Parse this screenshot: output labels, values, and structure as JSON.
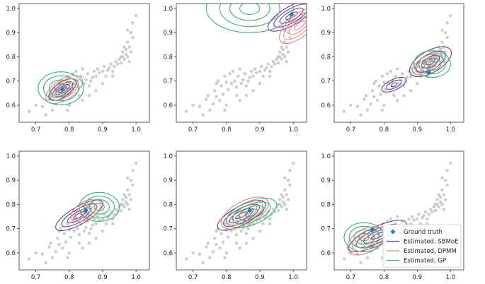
{
  "chart_data": {
    "type": "scatter",
    "layout": "2x3 grid of contour panels",
    "series_names": [
      "Ground truth",
      "Estimated, SBMoE",
      "Estimated, DPMM",
      "Estimated, GP"
    ],
    "colors": {
      "ground_truth": "#2a79b0",
      "sbmoe": "#6a3d9a",
      "dpmm": "#f08080",
      "gp": "#3cb371",
      "scatter": "#bdbdbd"
    },
    "legend": {
      "panel": 5,
      "placement": "lower-right",
      "entries": [
        {
          "label": "Ground truth",
          "kind": "diamond",
          "color_key": "ground_truth"
        },
        {
          "label": "Estimated, SBMoE",
          "kind": "line",
          "color_key": "sbmoe"
        },
        {
          "label": "Estimated, DPMM",
          "kind": "line",
          "color_key": "dpmm"
        },
        {
          "label": "Estimated, GP",
          "kind": "line",
          "color_key": "gp"
        }
      ]
    },
    "xlim": [
      0.65,
      1.04
    ],
    "ylim": [
      0.53,
      1.02
    ],
    "x_ticks": [
      "0.7",
      "0.8",
      "0.9",
      "1.0"
    ],
    "y_ticks": [
      "0.6",
      "0.7",
      "0.8",
      "0.9",
      "1.0"
    ],
    "scatter_points": [
      [
        0.68,
        0.575
      ],
      [
        0.7,
        0.6
      ],
      [
        0.72,
        0.595
      ],
      [
        0.73,
        0.56
      ],
      [
        0.74,
        0.625
      ],
      [
        0.745,
        0.64
      ],
      [
        0.75,
        0.58
      ],
      [
        0.76,
        0.605
      ],
      [
        0.765,
        0.66
      ],
      [
        0.77,
        0.635
      ],
      [
        0.775,
        0.7
      ],
      [
        0.78,
        0.62
      ],
      [
        0.785,
        0.68
      ],
      [
        0.79,
        0.645
      ],
      [
        0.795,
        0.72
      ],
      [
        0.8,
        0.6
      ],
      [
        0.8,
        0.695
      ],
      [
        0.805,
        0.665
      ],
      [
        0.81,
        0.73
      ],
      [
        0.815,
        0.69
      ],
      [
        0.82,
        0.74
      ],
      [
        0.825,
        0.7
      ],
      [
        0.83,
        0.675
      ],
      [
        0.835,
        0.72
      ],
      [
        0.84,
        0.75
      ],
      [
        0.845,
        0.69
      ],
      [
        0.85,
        0.705
      ],
      [
        0.855,
        0.73
      ],
      [
        0.86,
        0.68
      ],
      [
        0.865,
        0.7
      ],
      [
        0.87,
        0.715
      ],
      [
        0.875,
        0.74
      ],
      [
        0.88,
        0.72
      ],
      [
        0.885,
        0.75
      ],
      [
        0.89,
        0.735
      ],
      [
        0.9,
        0.74
      ],
      [
        0.905,
        0.76
      ],
      [
        0.91,
        0.72
      ],
      [
        0.915,
        0.745
      ],
      [
        0.92,
        0.755
      ],
      [
        0.925,
        0.77
      ],
      [
        0.93,
        0.74
      ],
      [
        0.935,
        0.76
      ],
      [
        0.94,
        0.78
      ],
      [
        0.945,
        0.77
      ],
      [
        0.95,
        0.79
      ],
      [
        0.955,
        0.775
      ],
      [
        0.96,
        0.8
      ],
      [
        0.96,
        0.82
      ],
      [
        0.965,
        0.79
      ],
      [
        0.97,
        0.81
      ],
      [
        0.97,
        0.83
      ],
      [
        0.975,
        0.8
      ],
      [
        0.975,
        0.86
      ],
      [
        0.98,
        0.84
      ],
      [
        0.98,
        0.78
      ],
      [
        0.985,
        0.82
      ],
      [
        0.99,
        0.88
      ],
      [
        0.99,
        0.94
      ],
      [
        1.0,
        0.97
      ],
      [
        0.795,
        0.58
      ],
      [
        0.84,
        0.62
      ],
      [
        0.86,
        0.64
      ],
      [
        0.9,
        0.69
      ],
      [
        0.93,
        0.72
      ],
      [
        0.88,
        0.66
      ],
      [
        0.83,
        0.64
      ],
      [
        0.77,
        0.69
      ],
      [
        0.955,
        0.8
      ],
      [
        0.965,
        0.84
      ],
      [
        0.985,
        0.9
      ],
      [
        0.975,
        0.91
      ]
    ],
    "panels": [
      {
        "ground_truth": [
          0.78,
          0.665
        ],
        "contours": [
          {
            "series": "sbmoe",
            "cx": 0.78,
            "cy": 0.665,
            "rx": [
              0.012,
              0.024,
              0.036,
              0.048
            ],
            "ry": [
              0.006,
              0.012,
              0.02,
              0.03
            ],
            "angle": 35
          },
          {
            "series": "dpmm",
            "cx": 0.785,
            "cy": 0.665,
            "rx": [
              0.02,
              0.034,
              0.048,
              0.062
            ],
            "ry": [
              0.012,
              0.022,
              0.032,
              0.042
            ],
            "angle": 32
          },
          {
            "series": "gp",
            "cx": 0.775,
            "cy": 0.67,
            "rx": [
              0.018,
              0.035,
              0.052,
              0.068
            ],
            "ry": [
              0.018,
              0.035,
              0.052,
              0.068
            ],
            "angle": 0
          }
        ]
      },
      {
        "ground_truth": [
          0.995,
          0.975
        ],
        "contours": [
          {
            "series": "sbmoe",
            "cx": 0.995,
            "cy": 0.97,
            "rx": [
              0.02,
              0.04,
              0.06,
              0.08
            ],
            "ry": [
              0.008,
              0.018,
              0.028,
              0.038
            ],
            "angle": 30
          },
          {
            "series": "dpmm",
            "cx": 1.02,
            "cy": 0.93,
            "rx": [
              0.02,
              0.04,
              0.06,
              0.075
            ],
            "ry": [
              0.01,
              0.02,
              0.032,
              0.045
            ],
            "angle": 40
          },
          {
            "series": "gp",
            "cx": 0.87,
            "cy": 1.0,
            "rx": [
              0.03,
              0.06,
              0.09,
              0.13
            ],
            "ry": [
              0.025,
              0.05,
              0.075,
              0.1
            ],
            "angle": 0
          }
        ]
      },
      {
        "ground_truth": [
          0.935,
          0.735
        ],
        "contours": [
          {
            "series": "sbmoe",
            "cx": 0.94,
            "cy": 0.78,
            "rx": [
              0.015,
              0.03,
              0.05,
              0.07
            ],
            "ry": [
              0.01,
              0.02,
              0.032,
              0.045
            ],
            "angle": 30
          },
          {
            "series": "sbmoe",
            "cx": 0.83,
            "cy": 0.685,
            "rx": [
              0.01,
              0.025,
              0.04
            ],
            "ry": [
              0.006,
              0.014,
              0.022
            ],
            "angle": 25
          },
          {
            "series": "dpmm",
            "cx": 0.93,
            "cy": 0.77,
            "rx": [
              0.02,
              0.035,
              0.05
            ],
            "ry": [
              0.012,
              0.022,
              0.032
            ],
            "angle": 30
          },
          {
            "series": "gp",
            "cx": 0.945,
            "cy": 0.77,
            "rx": [
              0.012,
              0.025,
              0.04,
              0.055
            ],
            "ry": [
              0.012,
              0.025,
              0.04,
              0.055
            ],
            "angle": 0
          }
        ]
      },
      {
        "ground_truth": [
          0.85,
          0.775
        ],
        "contours": [
          {
            "series": "sbmoe",
            "cx": 0.83,
            "cy": 0.755,
            "rx": [
              0.02,
              0.04,
              0.06,
              0.08
            ],
            "ry": [
              0.008,
              0.016,
              0.026,
              0.036
            ],
            "angle": 30
          },
          {
            "series": "dpmm",
            "cx": 0.85,
            "cy": 0.775,
            "rx": [
              0.02,
              0.035,
              0.05
            ],
            "ry": [
              0.012,
              0.024,
              0.036
            ],
            "angle": 30
          },
          {
            "series": "gp",
            "cx": 0.89,
            "cy": 0.79,
            "rx": [
              0.015,
              0.03,
              0.045,
              0.06
            ],
            "ry": [
              0.015,
              0.03,
              0.045,
              0.06
            ],
            "angle": 0
          }
        ]
      },
      {
        "ground_truth": [
          0.87,
          0.775
        ],
        "contours": [
          {
            "series": "sbmoe",
            "cx": 0.845,
            "cy": 0.755,
            "rx": [
              0.02,
              0.04,
              0.06,
              0.08
            ],
            "ry": [
              0.008,
              0.018,
              0.028,
              0.038
            ],
            "angle": 28
          },
          {
            "series": "dpmm",
            "cx": 0.855,
            "cy": 0.765,
            "rx": [
              0.02,
              0.04,
              0.06,
              0.078
            ],
            "ry": [
              0.012,
              0.024,
              0.036,
              0.048
            ],
            "angle": 28
          },
          {
            "series": "gp",
            "cx": 0.875,
            "cy": 0.765,
            "rx": [
              0.02,
              0.04,
              0.06,
              0.08
            ],
            "ry": [
              0.012,
              0.024,
              0.036,
              0.048
            ],
            "angle": 22
          }
        ]
      },
      {
        "ground_truth": [
          0.765,
          0.695
        ],
        "contours": [
          {
            "series": "sbmoe",
            "cx": 0.78,
            "cy": 0.67,
            "rx": [
              0.02,
              0.045,
              0.07,
              0.095
            ],
            "ry": [
              0.008,
              0.018,
              0.028,
              0.038
            ],
            "angle": 25
          },
          {
            "series": "dpmm",
            "cx": 0.745,
            "cy": 0.65,
            "rx": [
              0.015,
              0.03,
              0.045,
              0.06
            ],
            "ry": [
              0.012,
              0.024,
              0.036,
              0.048
            ],
            "angle": 30
          },
          {
            "series": "gp",
            "cx": 0.74,
            "cy": 0.665,
            "rx": [
              0.015,
              0.03,
              0.045,
              0.06
            ],
            "ry": [
              0.015,
              0.03,
              0.045,
              0.06
            ],
            "angle": 0
          }
        ]
      }
    ]
  }
}
